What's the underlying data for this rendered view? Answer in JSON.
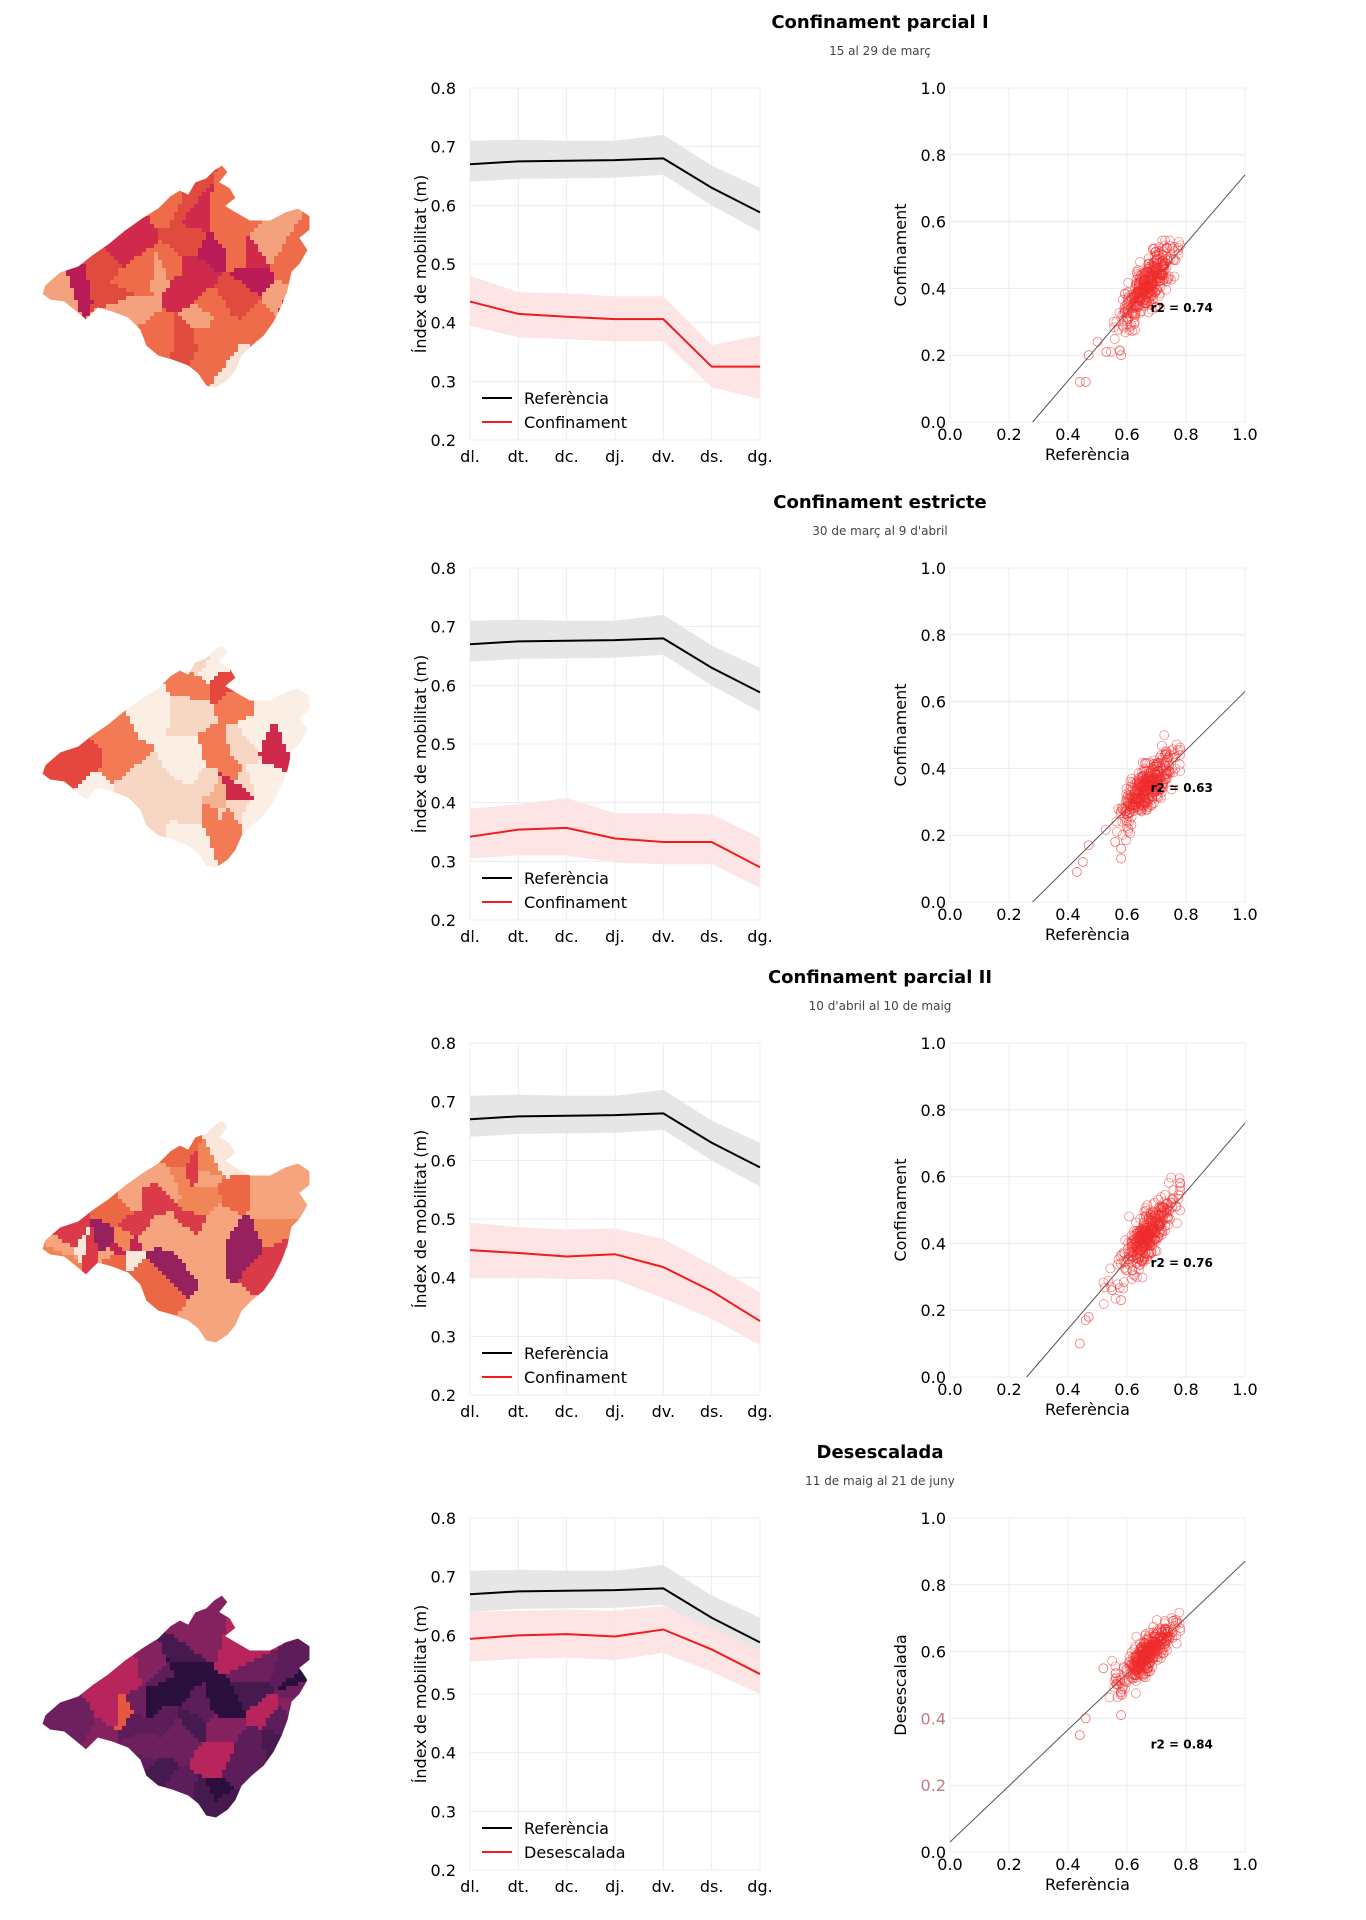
{
  "weekdays": [
    "dl.",
    "dt.",
    "dc.",
    "dj.",
    "dv.",
    "ds.",
    "dg."
  ],
  "line_ylabel": "Índex de mobilitat (m)",
  "scatter_xlabel": "Referència",
  "colors": {
    "reference": "#000000",
    "reference_band": "#e3e3e3",
    "period": "#ee1c1c",
    "period_band": "#fde2e2"
  },
  "panels": [
    {
      "title": "Confinament parcial I",
      "subtitle": "15 al 29 de març",
      "map_palette": [
        "#f7e4d7",
        "#f4a27d",
        "#ef6c4b",
        "#e04a3f",
        "#cf2a4c",
        "#b81b56",
        "#8e1c5f"
      ],
      "map_weights": [
        0.05,
        0.12,
        0.28,
        0.2,
        0.22,
        0.1,
        0.03
      ]
    },
    {
      "title": "Confinament estricte",
      "subtitle": "30 de març al 9 d'abril",
      "map_palette": [
        "#fbeee4",
        "#f7d7c4",
        "#f5b08f",
        "#f27b56",
        "#e5473e",
        "#cf2a4c"
      ],
      "map_weights": [
        0.22,
        0.32,
        0.18,
        0.2,
        0.05,
        0.03
      ]
    },
    {
      "title": "Confinament parcial II",
      "subtitle": "10 d'abril al 10 de maig",
      "map_palette": [
        "#f8e7da",
        "#f5a47e",
        "#f08558",
        "#ec6744",
        "#db3b49",
        "#c22553",
        "#97205f"
      ],
      "map_weights": [
        0.06,
        0.3,
        0.2,
        0.2,
        0.12,
        0.09,
        0.03
      ]
    },
    {
      "title": "Desescalada",
      "subtitle": "11 de maig al 21 de juny",
      "map_palette": [
        "#0b0826",
        "#2a0f3c",
        "#461a4f",
        "#5d1d5a",
        "#6e1f5e",
        "#84225f",
        "#b8245c",
        "#e6573f"
      ],
      "map_weights": [
        0.03,
        0.12,
        0.2,
        0.2,
        0.22,
        0.12,
        0.07,
        0.04
      ]
    }
  ],
  "chart_data": [
    {
      "type": "line",
      "panel": "Confinament parcial I",
      "x": [
        "dl.",
        "dt.",
        "dc.",
        "dj.",
        "dv.",
        "ds.",
        "dg."
      ],
      "ylim": [
        0.2,
        0.8
      ],
      "yticks": [
        "0.2",
        "0.3",
        "0.4",
        "0.5",
        "0.6",
        "0.7",
        "0.8"
      ],
      "ylabel": "Índex de mobilitat (m)",
      "legend_position": "bottom-left",
      "series": [
        {
          "name": "Referència",
          "values": [
            0.67,
            0.675,
            0.676,
            0.677,
            0.68,
            0.63,
            0.588
          ],
          "lower": [
            0.64,
            0.645,
            0.646,
            0.647,
            0.652,
            0.6,
            0.555
          ],
          "upper": [
            0.71,
            0.712,
            0.71,
            0.71,
            0.72,
            0.668,
            0.63
          ]
        },
        {
          "name": "Confinament",
          "values": [
            0.436,
            0.415,
            0.41,
            0.406,
            0.406,
            0.325,
            0.325
          ],
          "lower": [
            0.395,
            0.375,
            0.372,
            0.368,
            0.368,
            0.29,
            0.27
          ],
          "upper": [
            0.48,
            0.452,
            0.45,
            0.445,
            0.445,
            0.362,
            0.378
          ]
        }
      ]
    },
    {
      "type": "scatter",
      "panel": "Confinament parcial I",
      "xlabel": "Referència",
      "ylabel": "Confinament",
      "xlim": [
        0,
        1
      ],
      "ylim": [
        0,
        1
      ],
      "xticks": [
        "0.0",
        "0.2",
        "0.4",
        "0.6",
        "0.8",
        "1.0"
      ],
      "yticks": [
        "0.0",
        "0.2",
        "0.4",
        "0.6",
        "0.8",
        "1.0"
      ],
      "annotation": "r2 = 0.74",
      "fit_line": [
        [
          0.28,
          0.0
        ],
        [
          1.0,
          0.74
        ]
      ],
      "cloud": {
        "n": 380,
        "x_range": [
          0.42,
          0.78
        ],
        "mean_x": 0.67,
        "sd_x": 0.048,
        "slope": 1.03,
        "intercept": -0.28,
        "noise": 0.035
      },
      "outliers": [
        [
          0.44,
          0.12
        ],
        [
          0.46,
          0.12
        ],
        [
          0.47,
          0.2
        ],
        [
          0.5,
          0.24
        ],
        [
          0.53,
          0.21
        ],
        [
          0.58,
          0.2
        ]
      ]
    },
    {
      "type": "line",
      "panel": "Confinament estricte",
      "x": [
        "dl.",
        "dt.",
        "dc.",
        "dj.",
        "dv.",
        "ds.",
        "dg."
      ],
      "ylim": [
        0.2,
        0.8
      ],
      "yticks": [
        "0.2",
        "0.3",
        "0.4",
        "0.5",
        "0.6",
        "0.7",
        "0.8"
      ],
      "ylabel": "Índex de mobilitat (m)",
      "legend_position": "bottom-left",
      "series": [
        {
          "name": "Referència",
          "values": [
            0.67,
            0.675,
            0.676,
            0.677,
            0.68,
            0.63,
            0.588
          ],
          "lower": [
            0.64,
            0.645,
            0.646,
            0.647,
            0.652,
            0.6,
            0.555
          ],
          "upper": [
            0.71,
            0.712,
            0.71,
            0.71,
            0.72,
            0.668,
            0.63
          ]
        },
        {
          "name": "Confinament",
          "values": [
            0.342,
            0.354,
            0.357,
            0.339,
            0.333,
            0.333,
            0.29
          ],
          "lower": [
            0.305,
            0.31,
            0.31,
            0.298,
            0.295,
            0.295,
            0.255
          ],
          "upper": [
            0.39,
            0.397,
            0.408,
            0.382,
            0.382,
            0.38,
            0.34
          ]
        }
      ]
    },
    {
      "type": "scatter",
      "panel": "Confinament estricte",
      "xlabel": "Referència",
      "ylabel": "Confinament",
      "xlim": [
        0,
        1
      ],
      "ylim": [
        0,
        1
      ],
      "xticks": [
        "0.0",
        "0.2",
        "0.4",
        "0.6",
        "0.8",
        "1.0"
      ],
      "yticks": [
        "0.0",
        "0.2",
        "0.4",
        "0.6",
        "0.8",
        "1.0"
      ],
      "annotation": "r2 = 0.63",
      "fit_line": [
        [
          0.28,
          0.0
        ],
        [
          1.0,
          0.63
        ]
      ],
      "cloud": {
        "n": 380,
        "x_range": [
          0.42,
          0.78
        ],
        "mean_x": 0.67,
        "sd_x": 0.048,
        "slope": 0.88,
        "intercept": -0.245,
        "noise": 0.035
      },
      "outliers": [
        [
          0.43,
          0.09
        ],
        [
          0.45,
          0.12
        ],
        [
          0.47,
          0.17
        ],
        [
          0.58,
          0.13
        ],
        [
          0.58,
          0.16
        ],
        [
          0.56,
          0.18
        ]
      ]
    },
    {
      "type": "line",
      "panel": "Confinament parcial II",
      "x": [
        "dl.",
        "dt.",
        "dc.",
        "dj.",
        "dv.",
        "ds.",
        "dg."
      ],
      "ylim": [
        0.2,
        0.8
      ],
      "yticks": [
        "0.2",
        "0.3",
        "0.4",
        "0.5",
        "0.6",
        "0.7",
        "0.8"
      ],
      "ylabel": "Índex de mobilitat (m)",
      "legend_position": "bottom-left",
      "series": [
        {
          "name": "Referència",
          "values": [
            0.67,
            0.675,
            0.676,
            0.677,
            0.68,
            0.63,
            0.588
          ],
          "lower": [
            0.64,
            0.645,
            0.646,
            0.647,
            0.652,
            0.6,
            0.555
          ],
          "upper": [
            0.71,
            0.712,
            0.71,
            0.71,
            0.72,
            0.668,
            0.63
          ]
        },
        {
          "name": "Confinament",
          "values": [
            0.447,
            0.442,
            0.436,
            0.44,
            0.418,
            0.377,
            0.326
          ],
          "lower": [
            0.4,
            0.4,
            0.398,
            0.397,
            0.365,
            0.33,
            0.285
          ],
          "upper": [
            0.494,
            0.486,
            0.482,
            0.484,
            0.466,
            0.422,
            0.375
          ]
        }
      ]
    },
    {
      "type": "scatter",
      "panel": "Confinament parcial II",
      "xlabel": "Referència",
      "ylabel": "Confinament",
      "xlim": [
        0,
        1
      ],
      "ylim": [
        0,
        1
      ],
      "xticks": [
        "0.0",
        "0.2",
        "0.4",
        "0.6",
        "0.8",
        "1.0"
      ],
      "yticks": [
        "0.0",
        "0.2",
        "0.4",
        "0.6",
        "0.8",
        "1.0"
      ],
      "annotation": "r2 = 0.76",
      "fit_line": [
        [
          0.26,
          0.0
        ],
        [
          1.0,
          0.76
        ]
      ],
      "cloud": {
        "n": 380,
        "x_range": [
          0.42,
          0.78
        ],
        "mean_x": 0.67,
        "sd_x": 0.048,
        "slope": 1.05,
        "intercept": -0.28,
        "noise": 0.035
      },
      "outliers": [
        [
          0.44,
          0.1
        ],
        [
          0.47,
          0.18
        ],
        [
          0.46,
          0.17
        ],
        [
          0.58,
          0.23
        ],
        [
          0.55,
          0.26
        ]
      ]
    },
    {
      "type": "line",
      "panel": "Desescalada",
      "x": [
        "dl.",
        "dt.",
        "dc.",
        "dj.",
        "dv.",
        "ds.",
        "dg."
      ],
      "ylim": [
        0.2,
        0.8
      ],
      "yticks": [
        "0.2",
        "0.3",
        "0.4",
        "0.5",
        "0.6",
        "0.7",
        "0.8"
      ],
      "ylabel": "Índex de mobilitat (m)",
      "legend_position": "bottom-left",
      "series": [
        {
          "name": "Referència",
          "values": [
            0.67,
            0.675,
            0.676,
            0.677,
            0.68,
            0.63,
            0.588
          ],
          "lower": [
            0.64,
            0.645,
            0.646,
            0.647,
            0.652,
            0.6,
            0.555
          ],
          "upper": [
            0.71,
            0.712,
            0.71,
            0.71,
            0.72,
            0.668,
            0.63
          ]
        },
        {
          "name": "Desescalada",
          "values": [
            0.594,
            0.6,
            0.602,
            0.598,
            0.61,
            0.576,
            0.534
          ],
          "lower": [
            0.555,
            0.56,
            0.562,
            0.558,
            0.57,
            0.538,
            0.5
          ],
          "upper": [
            0.64,
            0.642,
            0.644,
            0.642,
            0.65,
            0.614,
            0.575
          ]
        }
      ]
    },
    {
      "type": "scatter",
      "panel": "Desescalada",
      "xlabel": "Referència",
      "ylabel": "Desescalada",
      "xlim": [
        0,
        1
      ],
      "ylim": [
        0,
        1
      ],
      "xticks": [
        "0.0",
        "0.2",
        "0.4",
        "0.6",
        "0.8",
        "1.0"
      ],
      "yticks": [
        "0.0",
        "0.2",
        "0.4",
        "0.6",
        "0.8",
        "1.0"
      ],
      "annotation": "r2 = 0.84",
      "fit_line": [
        [
          0.0,
          0.03
        ],
        [
          1.0,
          0.87
        ]
      ],
      "cloud": {
        "n": 380,
        "x_range": [
          0.42,
          0.78
        ],
        "mean_x": 0.67,
        "sd_x": 0.048,
        "slope": 0.84,
        "intercept": 0.03,
        "noise": 0.025
      },
      "outliers": [
        [
          0.44,
          0.35
        ],
        [
          0.46,
          0.4
        ],
        [
          0.58,
          0.41
        ],
        [
          0.52,
          0.55
        ]
      ]
    }
  ]
}
